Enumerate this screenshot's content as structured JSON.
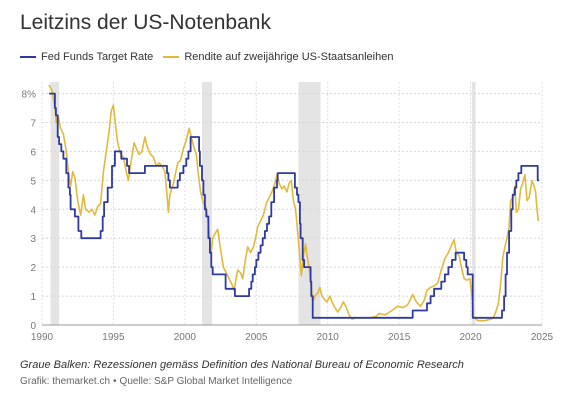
{
  "header": {
    "title": "Leitzins der US-Notenbank"
  },
  "legend": [
    {
      "label": "Fed Funds Target Rate",
      "color": "#2e3a9f"
    },
    {
      "label": "Rendite auf zweijährige US-Staatsanleihen",
      "color": "#e2b93b"
    }
  ],
  "footer": {
    "note": "Graue Balken: Rezessionen gemäss Definition des National Bureau of Economic Research",
    "credit_source": "Grafik: themarket.ch",
    "credit_sep": "•",
    "credit_data": "Quelle: S&P Global Market Intelligence"
  },
  "chart_data": {
    "type": "line",
    "title": "Leitzins der US-Notenbank",
    "xlabel": "",
    "ylabel": "",
    "xlim": [
      1990,
      2025
    ],
    "ylim": [
      0,
      8.4
    ],
    "x_ticks": [
      1990,
      1995,
      2000,
      2005,
      2010,
      2015,
      2020,
      2025
    ],
    "y_ticks": [
      {
        "value": 0,
        "label": "0"
      },
      {
        "value": 1,
        "label": "1"
      },
      {
        "value": 2,
        "label": "2"
      },
      {
        "value": 3,
        "label": "3"
      },
      {
        "value": 4,
        "label": "4"
      },
      {
        "value": 5,
        "label": "5"
      },
      {
        "value": 6,
        "label": "6"
      },
      {
        "value": 7,
        "label": "7"
      },
      {
        "value": 8,
        "label": "8%"
      }
    ],
    "grid": "horizontal",
    "legend_position": "top-left",
    "recessions": [
      [
        1990.6,
        1991.2
      ],
      [
        2001.2,
        2001.9
      ],
      [
        2007.95,
        2009.5
      ],
      [
        2020.1,
        2020.35
      ]
    ],
    "series": [
      {
        "name": "Fed Funds Target Rate",
        "color": "#2e3a9f",
        "style": "step",
        "points": [
          [
            1990.5,
            8.0
          ],
          [
            1990.9,
            7.5
          ],
          [
            1990.97,
            7.25
          ],
          [
            1991.1,
            6.5
          ],
          [
            1991.2,
            6.25
          ],
          [
            1991.35,
            6.0
          ],
          [
            1991.5,
            5.75
          ],
          [
            1991.7,
            5.25
          ],
          [
            1991.85,
            4.75
          ],
          [
            1991.95,
            4.5
          ],
          [
            1992.0,
            4.0
          ],
          [
            1992.3,
            3.75
          ],
          [
            1992.55,
            3.25
          ],
          [
            1992.75,
            3.0
          ],
          [
            1994.1,
            3.25
          ],
          [
            1994.25,
            3.75
          ],
          [
            1994.35,
            4.25
          ],
          [
            1994.6,
            4.75
          ],
          [
            1994.9,
            5.5
          ],
          [
            1995.1,
            6.0
          ],
          [
            1995.55,
            5.75
          ],
          [
            1995.95,
            5.5
          ],
          [
            1996.1,
            5.25
          ],
          [
            1997.2,
            5.5
          ],
          [
            1998.75,
            5.25
          ],
          [
            1998.85,
            5.0
          ],
          [
            1998.95,
            4.75
          ],
          [
            1999.5,
            5.0
          ],
          [
            1999.65,
            5.25
          ],
          [
            1999.9,
            5.5
          ],
          [
            2000.1,
            5.75
          ],
          [
            2000.25,
            6.0
          ],
          [
            2000.4,
            6.5
          ],
          [
            2001.0,
            6.0
          ],
          [
            2001.05,
            5.5
          ],
          [
            2001.2,
            5.0
          ],
          [
            2001.3,
            4.5
          ],
          [
            2001.4,
            4.0
          ],
          [
            2001.5,
            3.75
          ],
          [
            2001.65,
            3.0
          ],
          [
            2001.75,
            2.5
          ],
          [
            2001.85,
            2.0
          ],
          [
            2001.95,
            1.75
          ],
          [
            2002.85,
            1.25
          ],
          [
            2003.5,
            1.0
          ],
          [
            2004.5,
            1.25
          ],
          [
            2004.65,
            1.5
          ],
          [
            2004.75,
            1.75
          ],
          [
            2004.9,
            2.0
          ],
          [
            2005.0,
            2.25
          ],
          [
            2005.15,
            2.5
          ],
          [
            2005.3,
            2.75
          ],
          [
            2005.45,
            3.0
          ],
          [
            2005.6,
            3.25
          ],
          [
            2005.75,
            3.5
          ],
          [
            2005.9,
            3.75
          ],
          [
            2006.05,
            4.25
          ],
          [
            2006.25,
            4.75
          ],
          [
            2006.45,
            5.0
          ],
          [
            2006.5,
            5.25
          ],
          [
            2007.7,
            4.75
          ],
          [
            2007.85,
            4.5
          ],
          [
            2007.95,
            4.25
          ],
          [
            2008.05,
            3.5
          ],
          [
            2008.1,
            3.0
          ],
          [
            2008.25,
            2.25
          ],
          [
            2008.35,
            2.0
          ],
          [
            2008.8,
            1.5
          ],
          [
            2008.85,
            1.0
          ],
          [
            2008.95,
            0.25
          ],
          [
            2015.95,
            0.5
          ],
          [
            2016.95,
            0.75
          ],
          [
            2017.2,
            1.0
          ],
          [
            2017.45,
            1.25
          ],
          [
            2017.95,
            1.5
          ],
          [
            2018.2,
            1.75
          ],
          [
            2018.45,
            2.0
          ],
          [
            2018.7,
            2.25
          ],
          [
            2018.95,
            2.5
          ],
          [
            2019.55,
            2.25
          ],
          [
            2019.7,
            2.0
          ],
          [
            2019.8,
            1.75
          ],
          [
            2020.15,
            0.25
          ],
          [
            2022.2,
            0.5
          ],
          [
            2022.35,
            1.0
          ],
          [
            2022.45,
            1.75
          ],
          [
            2022.55,
            2.5
          ],
          [
            2022.7,
            3.25
          ],
          [
            2022.85,
            4.0
          ],
          [
            2022.95,
            4.5
          ],
          [
            2023.1,
            4.75
          ],
          [
            2023.2,
            5.0
          ],
          [
            2023.35,
            5.25
          ],
          [
            2023.55,
            5.5
          ],
          [
            2024.7,
            5.0
          ],
          [
            2024.8,
            5.0
          ]
        ]
      },
      {
        "name": "Rendite auf zweijährige US-Staatsanleihen",
        "color": "#e2b93b",
        "style": "line",
        "points": [
          [
            1990.5,
            8.3
          ],
          [
            1990.7,
            8.1
          ],
          [
            1990.9,
            7.5
          ],
          [
            1991.0,
            7.0
          ],
          [
            1991.15,
            7.2
          ],
          [
            1991.3,
            6.8
          ],
          [
            1991.5,
            6.6
          ],
          [
            1991.7,
            6.0
          ],
          [
            1991.85,
            5.3
          ],
          [
            1992.0,
            4.8
          ],
          [
            1992.15,
            5.3
          ],
          [
            1992.3,
            5.1
          ],
          [
            1992.5,
            4.3
          ],
          [
            1992.7,
            3.8
          ],
          [
            1992.9,
            4.5
          ],
          [
            1993.05,
            4.0
          ],
          [
            1993.3,
            3.9
          ],
          [
            1993.5,
            4.0
          ],
          [
            1993.7,
            3.8
          ],
          [
            1993.9,
            4.1
          ],
          [
            1994.1,
            4.2
          ],
          [
            1994.3,
            5.3
          ],
          [
            1994.5,
            6.0
          ],
          [
            1994.7,
            6.7
          ],
          [
            1994.85,
            7.4
          ],
          [
            1995.0,
            7.6
          ],
          [
            1995.15,
            6.9
          ],
          [
            1995.3,
            6.3
          ],
          [
            1995.5,
            5.9
          ],
          [
            1995.7,
            5.8
          ],
          [
            1995.9,
            5.3
          ],
          [
            1996.05,
            5.0
          ],
          [
            1996.25,
            5.7
          ],
          [
            1996.45,
            6.3
          ],
          [
            1996.6,
            6.1
          ],
          [
            1996.8,
            5.9
          ],
          [
            1997.0,
            6.0
          ],
          [
            1997.2,
            6.5
          ],
          [
            1997.4,
            6.1
          ],
          [
            1997.6,
            5.9
          ],
          [
            1997.8,
            5.8
          ],
          [
            1998.0,
            5.5
          ],
          [
            1998.2,
            5.6
          ],
          [
            1998.4,
            5.5
          ],
          [
            1998.6,
            5.3
          ],
          [
            1998.75,
            4.5
          ],
          [
            1998.85,
            3.9
          ],
          [
            1998.95,
            4.5
          ],
          [
            1999.2,
            4.9
          ],
          [
            1999.5,
            5.6
          ],
          [
            1999.7,
            5.7
          ],
          [
            1999.9,
            6.1
          ],
          [
            2000.1,
            6.4
          ],
          [
            2000.3,
            6.8
          ],
          [
            2000.45,
            6.5
          ],
          [
            2000.6,
            6.2
          ],
          [
            2000.8,
            5.9
          ],
          [
            2000.95,
            5.2
          ],
          [
            2001.1,
            4.6
          ],
          [
            2001.3,
            4.2
          ],
          [
            2001.45,
            4.1
          ],
          [
            2001.6,
            3.7
          ],
          [
            2001.75,
            2.9
          ],
          [
            2001.85,
            2.5
          ],
          [
            2001.95,
            3.0
          ],
          [
            2002.15,
            3.2
          ],
          [
            2002.3,
            3.3
          ],
          [
            2002.5,
            2.6
          ],
          [
            2002.7,
            2.0
          ],
          [
            2002.9,
            1.8
          ],
          [
            2003.1,
            1.6
          ],
          [
            2003.3,
            1.4
          ],
          [
            2003.45,
            1.2
          ],
          [
            2003.55,
            1.5
          ],
          [
            2003.7,
            1.9
          ],
          [
            2003.9,
            1.8
          ],
          [
            2004.05,
            1.6
          ],
          [
            2004.25,
            2.3
          ],
          [
            2004.4,
            2.7
          ],
          [
            2004.6,
            2.5
          ],
          [
            2004.8,
            2.7
          ],
          [
            2004.95,
            3.0
          ],
          [
            2005.1,
            3.4
          ],
          [
            2005.3,
            3.6
          ],
          [
            2005.5,
            3.8
          ],
          [
            2005.7,
            4.2
          ],
          [
            2005.9,
            4.4
          ],
          [
            2006.1,
            4.6
          ],
          [
            2006.3,
            4.9
          ],
          [
            2006.45,
            5.2
          ],
          [
            2006.6,
            4.9
          ],
          [
            2006.8,
            4.7
          ],
          [
            2006.95,
            4.8
          ],
          [
            2007.15,
            4.6
          ],
          [
            2007.3,
            4.9
          ],
          [
            2007.45,
            5.0
          ],
          [
            2007.6,
            4.3
          ],
          [
            2007.75,
            4.0
          ],
          [
            2007.9,
            3.2
          ],
          [
            2008.05,
            2.3
          ],
          [
            2008.15,
            1.7
          ],
          [
            2008.3,
            2.4
          ],
          [
            2008.45,
            2.8
          ],
          [
            2008.55,
            2.4
          ],
          [
            2008.7,
            2.0
          ],
          [
            2008.85,
            1.3
          ],
          [
            2008.95,
            0.8
          ],
          [
            2009.1,
            1.0
          ],
          [
            2009.3,
            1.1
          ],
          [
            2009.45,
            1.3
          ],
          [
            2009.6,
            1.0
          ],
          [
            2009.75,
            0.9
          ],
          [
            2009.95,
            0.8
          ],
          [
            2010.15,
            1.0
          ],
          [
            2010.3,
            0.8
          ],
          [
            2010.5,
            0.6
          ],
          [
            2010.7,
            0.45
          ],
          [
            2010.9,
            0.6
          ],
          [
            2011.1,
            0.8
          ],
          [
            2011.3,
            0.6
          ],
          [
            2011.5,
            0.35
          ],
          [
            2011.7,
            0.2
          ],
          [
            2012.0,
            0.25
          ],
          [
            2012.5,
            0.25
          ],
          [
            2013.0,
            0.25
          ],
          [
            2013.4,
            0.3
          ],
          [
            2013.6,
            0.4
          ],
          [
            2014.0,
            0.35
          ],
          [
            2014.5,
            0.5
          ],
          [
            2014.9,
            0.65
          ],
          [
            2015.3,
            0.6
          ],
          [
            2015.6,
            0.7
          ],
          [
            2015.95,
            1.05
          ],
          [
            2016.2,
            0.8
          ],
          [
            2016.5,
            0.65
          ],
          [
            2016.75,
            0.85
          ],
          [
            2016.95,
            1.2
          ],
          [
            2017.2,
            1.3
          ],
          [
            2017.45,
            1.35
          ],
          [
            2017.7,
            1.45
          ],
          [
            2017.95,
            1.9
          ],
          [
            2018.2,
            2.3
          ],
          [
            2018.45,
            2.5
          ],
          [
            2018.7,
            2.8
          ],
          [
            2018.85,
            2.95
          ],
          [
            2019.0,
            2.5
          ],
          [
            2019.2,
            2.4
          ],
          [
            2019.4,
            1.9
          ],
          [
            2019.55,
            1.6
          ],
          [
            2019.75,
            1.55
          ],
          [
            2019.95,
            1.6
          ],
          [
            2020.1,
            1.0
          ],
          [
            2020.2,
            0.3
          ],
          [
            2020.5,
            0.15
          ],
          [
            2021.0,
            0.15
          ],
          [
            2021.4,
            0.2
          ],
          [
            2021.6,
            0.25
          ],
          [
            2021.8,
            0.5
          ],
          [
            2021.95,
            0.75
          ],
          [
            2022.1,
            1.4
          ],
          [
            2022.25,
            2.3
          ],
          [
            2022.4,
            2.7
          ],
          [
            2022.55,
            3.0
          ],
          [
            2022.7,
            3.4
          ],
          [
            2022.8,
            4.3
          ],
          [
            2022.95,
            4.4
          ],
          [
            2023.1,
            4.8
          ],
          [
            2023.2,
            3.9
          ],
          [
            2023.35,
            4.0
          ],
          [
            2023.5,
            4.7
          ],
          [
            2023.65,
            4.9
          ],
          [
            2023.8,
            5.2
          ],
          [
            2023.95,
            4.3
          ],
          [
            2024.1,
            4.4
          ],
          [
            2024.3,
            5.0
          ],
          [
            2024.45,
            4.8
          ],
          [
            2024.55,
            4.6
          ],
          [
            2024.65,
            4.0
          ],
          [
            2024.75,
            3.6
          ]
        ]
      }
    ]
  }
}
